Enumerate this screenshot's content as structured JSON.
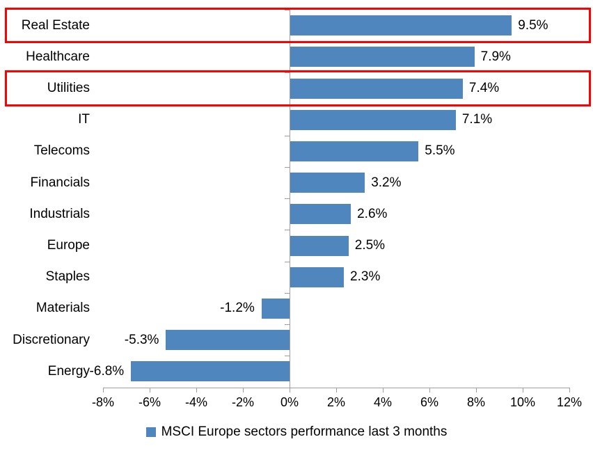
{
  "chart_data": {
    "type": "bar",
    "orientation": "horizontal",
    "title": "",
    "xlabel": "",
    "ylabel": "",
    "categories": [
      "Real Estate",
      "Healthcare",
      "Utilities",
      "IT",
      "Telecoms",
      "Financials",
      "Industrials",
      "Europe",
      "Staples",
      "Materials",
      "Discretionary",
      "Energy"
    ],
    "values": [
      9.5,
      7.9,
      7.4,
      7.1,
      5.5,
      3.2,
      2.6,
      2.5,
      2.3,
      -1.2,
      -5.3,
      -6.8
    ],
    "data_labels": [
      "9.5%",
      "7.9%",
      "7.4%",
      "7.1%",
      "5.5%",
      "3.2%",
      "2.6%",
      "2.5%",
      "2.3%",
      "-1.2%",
      "-5.3%",
      "-6.8%"
    ],
    "xlim": [
      -8,
      12
    ],
    "x_tick_values": [
      -8,
      -6,
      -4,
      -2,
      0,
      2,
      4,
      6,
      8,
      10,
      12
    ],
    "x_tick_labels": [
      "-8%",
      "-6%",
      "-4%",
      "-2%",
      "0%",
      "2%",
      "4%",
      "6%",
      "8%",
      "10%",
      "12%"
    ],
    "grid": false,
    "legend_position": "bottom",
    "legend": [
      {
        "label": "MSCI Europe sectors performance last 3 months",
        "color": "#4e86bd"
      }
    ],
    "highlighted_categories": [
      "Real Estate",
      "Utilities"
    ],
    "colors": {
      "bar": "#4e86bd",
      "axis": "#9e9e9e",
      "highlight_border": "#ff0000",
      "text": "#000000",
      "background": "#ffffff"
    }
  }
}
